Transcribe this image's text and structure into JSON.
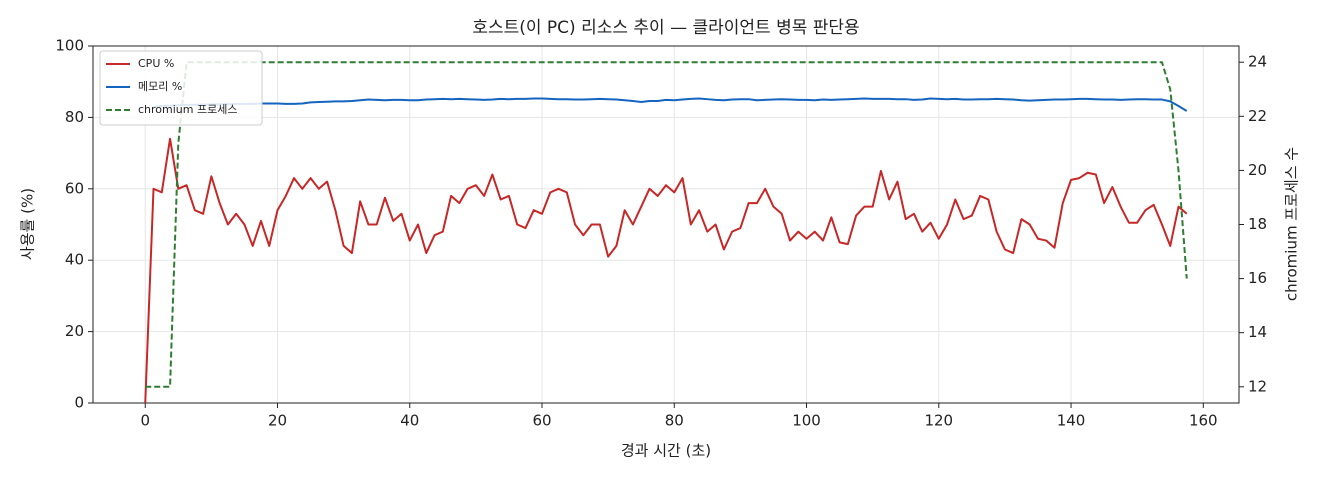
{
  "chart_data": {
    "type": "line",
    "title": "호스트(이 PC) 리소스 추이 — 클라이언트 병목 판단용",
    "x_label": "경과 시간 (초)",
    "y_label": "사용률 (%)",
    "y2_label": "chromium 프로세스 수",
    "xlim": [
      -7.9,
      165.4
    ],
    "xticks": [
      0,
      20,
      40,
      60,
      80,
      100,
      120,
      140,
      160
    ],
    "ylim": [
      0,
      100
    ],
    "yticks": [
      0,
      20,
      40,
      60,
      80,
      100
    ],
    "y2lim": [
      11.4,
      24.6
    ],
    "y2ticks": [
      12,
      14,
      16,
      18,
      20,
      22,
      24
    ],
    "grid": true,
    "legend": "upper left",
    "x": [
      0,
      1.25,
      2.5,
      3.75,
      5,
      6.25,
      7.5,
      8.75,
      10,
      11.25,
      12.5,
      13.75,
      15,
      16.25,
      17.5,
      18.75,
      20,
      21.25,
      22.5,
      23.75,
      25,
      26.25,
      27.5,
      28.75,
      30,
      31.25,
      32.5,
      33.75,
      35,
      36.25,
      37.5,
      38.75,
      40,
      41.25,
      42.5,
      43.75,
      45,
      46.25,
      47.5,
      48.75,
      50,
      51.25,
      52.5,
      53.75,
      55,
      56.25,
      57.5,
      58.75,
      60,
      61.25,
      62.5,
      63.75,
      65,
      66.25,
      67.5,
      68.75,
      70,
      71.25,
      72.5,
      73.75,
      75,
      76.25,
      77.5,
      78.75,
      80,
      81.25,
      82.5,
      83.75,
      85,
      86.25,
      87.5,
      88.75,
      90,
      91.25,
      92.5,
      93.75,
      95,
      96.25,
      97.5,
      98.75,
      100,
      101.25,
      102.5,
      103.75,
      105,
      106.25,
      107.5,
      108.75,
      110,
      111.25,
      112.5,
      113.75,
      115,
      116.25,
      117.5,
      118.75,
      120,
      121.25,
      122.5,
      123.75,
      125,
      126.25,
      127.5,
      128.75,
      130,
      131.25,
      132.5,
      133.75,
      135,
      136.25,
      137.5,
      138.75,
      140,
      141.25,
      142.5,
      143.75,
      145,
      146.25,
      147.5,
      148.75,
      150,
      151.25,
      152.5,
      153.75,
      155,
      156.25,
      157.5
    ],
    "series": [
      {
        "name": "CPU %",
        "color": "#c62828",
        "values": [
          0,
          60,
          59,
          74,
          60,
          61,
          54,
          53,
          63.5,
          56,
          50,
          53,
          50,
          44,
          51,
          44,
          54,
          58,
          63,
          60,
          63,
          60,
          62,
          54,
          44,
          42,
          56.5,
          50,
          50,
          57.5,
          51,
          53,
          45.5,
          50,
          42,
          47,
          48,
          58,
          56,
          60,
          61,
          58,
          64,
          57,
          58,
          50,
          49,
          54,
          53,
          59,
          60,
          59,
          50,
          47,
          50,
          50,
          41,
          44,
          54,
          50,
          55,
          60,
          58,
          61,
          59,
          63,
          50,
          54,
          48,
          50,
          43,
          48,
          49,
          56,
          56,
          60,
          55,
          53,
          45.5,
          48,
          46,
          48,
          45.5,
          52,
          45,
          44.5,
          52.5,
          55,
          55,
          65,
          57,
          62,
          51.5,
          53,
          48,
          50.5,
          46,
          50,
          57,
          51.5,
          52.5,
          58,
          57,
          48,
          43,
          42,
          51.5,
          50,
          46,
          45.5,
          43.5,
          56,
          62.5,
          63,
          64.5,
          64,
          56,
          60.5,
          55,
          50.5,
          50.5,
          54,
          55.5,
          50,
          44,
          55,
          53
        ]
      },
      {
        "name": "메모리 %",
        "color": "#1565c0",
        "values": [
          null,
          83,
          83.2,
          83.3,
          83.4,
          83.5,
          83.5,
          83.6,
          83.6,
          83.7,
          83.7,
          83.8,
          83.8,
          83.8,
          83.9,
          83.9,
          83.9,
          83.8,
          83.8,
          83.9,
          84.2,
          84.3,
          84.4,
          84.5,
          84.5,
          84.6,
          84.8,
          85,
          84.9,
          84.8,
          84.9,
          84.9,
          84.8,
          84.8,
          85,
          85.1,
          85.2,
          85.1,
          85.2,
          85.1,
          85,
          84.9,
          85,
          85.2,
          85.1,
          85.2,
          85.2,
          85.3,
          85.3,
          85.2,
          85.1,
          85.1,
          85,
          85,
          85.1,
          85.2,
          85.1,
          85,
          84.8,
          84.6,
          84.3,
          84.6,
          84.6,
          84.9,
          84.8,
          85,
          85.2,
          85.3,
          85.1,
          84.9,
          84.8,
          85,
          85.1,
          85.1,
          84.8,
          84.9,
          85,
          85.1,
          85,
          84.9,
          84.9,
          84.8,
          85,
          84.9,
          85,
          85.1,
          85.2,
          85.3,
          85.2,
          85.2,
          85.2,
          85.1,
          85.1,
          84.9,
          85,
          85.3,
          85.2,
          85.1,
          85.2,
          85,
          85,
          85.1,
          85.1,
          85.2,
          85.1,
          85,
          84.8,
          84.7,
          84.8,
          84.9,
          85,
          85,
          85.1,
          85.2,
          85.2,
          85.1,
          85,
          85,
          84.9,
          85,
          85.1,
          85.1,
          85,
          85,
          84.5,
          83.2,
          81.8
        ]
      },
      {
        "name": "chromium 프로세스",
        "color": "#2e7d32",
        "axis": "y2",
        "dashed": true,
        "values": [
          12,
          12,
          12,
          12,
          21,
          24,
          24,
          24,
          24,
          24,
          24,
          24,
          24,
          24,
          24,
          24,
          24,
          24,
          24,
          24,
          24,
          24,
          24,
          24,
          24,
          24,
          24,
          24,
          24,
          24,
          24,
          24,
          24,
          24,
          24,
          24,
          24,
          24,
          24,
          24,
          24,
          24,
          24,
          24,
          24,
          24,
          24,
          24,
          24,
          24,
          24,
          24,
          24,
          24,
          24,
          24,
          24,
          24,
          24,
          24,
          24,
          24,
          24,
          24,
          24,
          24,
          24,
          24,
          24,
          24,
          24,
          24,
          24,
          24,
          24,
          24,
          24,
          24,
          24,
          24,
          24,
          24,
          24,
          24,
          24,
          24,
          24,
          24,
          24,
          24,
          24,
          24,
          24,
          24,
          24,
          24,
          24,
          24,
          24,
          24,
          24,
          24,
          24,
          24,
          24,
          24,
          24,
          24,
          24,
          24,
          24,
          24,
          24,
          24,
          24,
          24,
          24,
          24,
          24,
          24,
          24,
          24,
          24,
          24,
          23,
          20,
          16
        ]
      }
    ]
  }
}
